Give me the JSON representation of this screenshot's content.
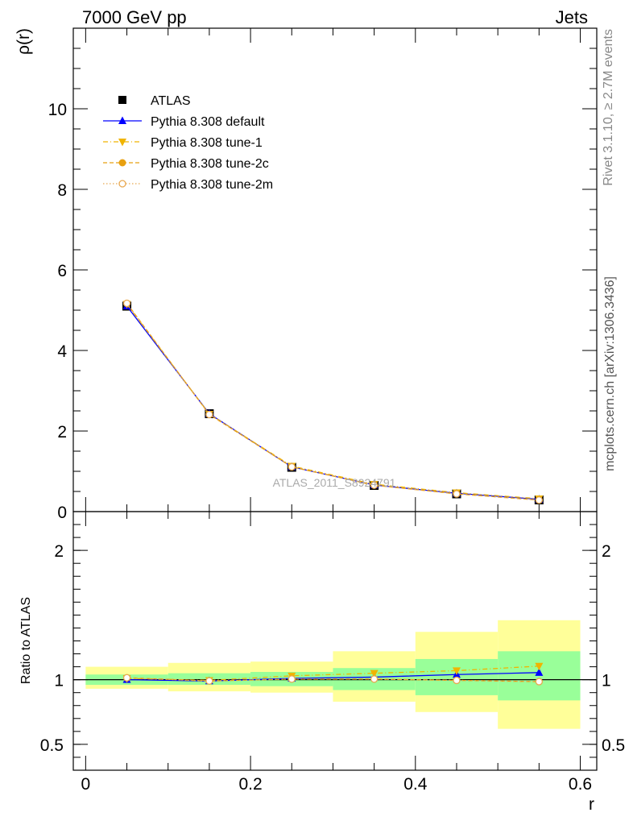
{
  "header": {
    "left": "7000 GeV pp",
    "right": "Jets"
  },
  "side_labels": {
    "rivet": "Rivet 3.1.10, ≥ 2.7M events",
    "mcplots": "mcplots.cern.ch [arXiv:1306.3436]"
  },
  "watermark": "ATLAS_2011_S8924791",
  "colors": {
    "atlas": "#000000",
    "default": "#0000ff",
    "tune1": "#f0b400",
    "tune2c": "#e8a010",
    "tune2m": "#e8a850",
    "band_inner": "#99ff99",
    "band_outer": "#ffff99"
  },
  "chart_data": [
    {
      "type": "line",
      "panel": "main",
      "xlabel": "",
      "ylabel": "ρ(r)",
      "xlim": [
        -0.015,
        0.62
      ],
      "ylim": [
        0,
        12
      ],
      "yticks": [
        0,
        2,
        4,
        6,
        8,
        10
      ],
      "x": [
        0.05,
        0.15,
        0.25,
        0.35,
        0.45,
        0.55
      ],
      "legend_position": "top-left",
      "series": [
        {
          "name": "ATLAS",
          "marker": "square",
          "values": [
            5.1,
            2.43,
            1.1,
            0.65,
            0.44,
            0.29
          ]
        },
        {
          "name": "Pythia 8.308 default",
          "marker": "triangle-up",
          "line": "solid",
          "values": [
            5.1,
            2.43,
            1.11,
            0.66,
            0.455,
            0.305
          ]
        },
        {
          "name": "Pythia 8.308 tune-1",
          "marker": "triangle-down",
          "line": "dashdot",
          "values": [
            5.15,
            2.42,
            1.13,
            0.68,
            0.47,
            0.32
          ]
        },
        {
          "name": "Pythia 8.308 tune-2c",
          "marker": "circle-filled",
          "line": "dashed",
          "values": [
            5.17,
            2.41,
            1.11,
            0.655,
            0.44,
            0.285
          ]
        },
        {
          "name": "Pythia 8.308 tune-2m",
          "marker": "circle-open",
          "line": "dotted",
          "values": [
            5.17,
            2.41,
            1.11,
            0.655,
            0.44,
            0.285
          ]
        }
      ]
    },
    {
      "type": "line",
      "panel": "ratio",
      "xlabel": "r",
      "ylabel": "Ratio to ATLAS",
      "xlim": [
        -0.015,
        0.62
      ],
      "ylim": [
        0.3,
        2.3
      ],
      "yticks": [
        0.5,
        1,
        2
      ],
      "xticks": [
        0,
        0.2,
        0.4,
        0.6
      ],
      "bins": [
        [
          0.0,
          0.1
        ],
        [
          0.1,
          0.2
        ],
        [
          0.2,
          0.3
        ],
        [
          0.3,
          0.4
        ],
        [
          0.4,
          0.5
        ],
        [
          0.5,
          0.6
        ]
      ],
      "band_inner": [
        [
          0.96,
          1.04
        ],
        [
          0.96,
          1.05
        ],
        [
          0.95,
          1.06
        ],
        [
          0.92,
          1.09
        ],
        [
          0.88,
          1.16
        ],
        [
          0.84,
          1.22
        ]
      ],
      "band_outer": [
        [
          0.93,
          1.1
        ],
        [
          0.91,
          1.13
        ],
        [
          0.9,
          1.14
        ],
        [
          0.83,
          1.22
        ],
        [
          0.75,
          1.37
        ],
        [
          0.62,
          1.46
        ]
      ],
      "x": [
        0.05,
        0.15,
        0.25,
        0.35,
        0.45,
        0.55
      ],
      "series": [
        {
          "name": "Pythia 8.308 default",
          "values": [
            1.0,
            0.99,
            1.01,
            1.02,
            1.04,
            1.055
          ]
        },
        {
          "name": "Pythia 8.308 tune-1",
          "values": [
            1.01,
            0.995,
            1.03,
            1.05,
            1.07,
            1.105
          ]
        },
        {
          "name": "Pythia 8.308 tune-2c",
          "values": [
            1.015,
            0.99,
            1.005,
            1.005,
            0.995,
            0.985
          ]
        },
        {
          "name": "Pythia 8.308 tune-2m",
          "values": [
            1.015,
            0.99,
            1.005,
            1.005,
            0.995,
            0.985
          ]
        }
      ]
    }
  ]
}
